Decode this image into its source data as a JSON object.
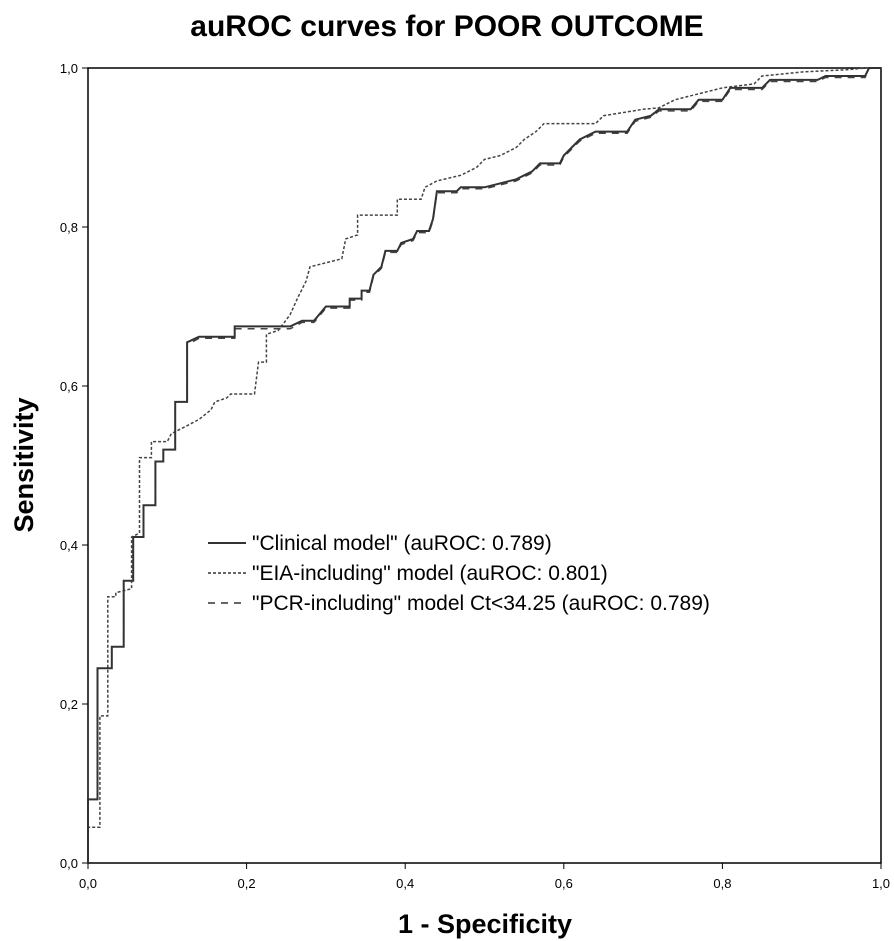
{
  "chart_data": {
    "type": "line",
    "title": "auROC curves for POOR OUTCOME",
    "xlabel": "1 - Specificity",
    "ylabel": "Sensitivity",
    "xlim": [
      0,
      1
    ],
    "ylim": [
      0,
      1
    ],
    "xticks": [
      "0,0",
      "0,2",
      "0,4",
      "0,6",
      "0,8",
      "1,0"
    ],
    "yticks": [
      "0,0",
      "0,2",
      "0,4",
      "0,6",
      "0,8",
      "1,0"
    ],
    "legend_position": "center",
    "grid": false,
    "series": [
      {
        "name": "\"Clinical model\" (auROC: 0.789)",
        "style": "solid",
        "points": [
          [
            0.0,
            0.0
          ],
          [
            0.0,
            0.08
          ],
          [
            0.012,
            0.08
          ],
          [
            0.012,
            0.245
          ],
          [
            0.03,
            0.245
          ],
          [
            0.03,
            0.272
          ],
          [
            0.045,
            0.272
          ],
          [
            0.045,
            0.355
          ],
          [
            0.057,
            0.355
          ],
          [
            0.057,
            0.41
          ],
          [
            0.07,
            0.41
          ],
          [
            0.07,
            0.45
          ],
          [
            0.085,
            0.45
          ],
          [
            0.085,
            0.505
          ],
          [
            0.095,
            0.505
          ],
          [
            0.095,
            0.52
          ],
          [
            0.11,
            0.52
          ],
          [
            0.11,
            0.58
          ],
          [
            0.125,
            0.58
          ],
          [
            0.125,
            0.655
          ],
          [
            0.14,
            0.662
          ],
          [
            0.185,
            0.662
          ],
          [
            0.185,
            0.675
          ],
          [
            0.255,
            0.675
          ],
          [
            0.27,
            0.682
          ],
          [
            0.285,
            0.682
          ],
          [
            0.3,
            0.7
          ],
          [
            0.33,
            0.7
          ],
          [
            0.33,
            0.71
          ],
          [
            0.345,
            0.71
          ],
          [
            0.345,
            0.72
          ],
          [
            0.355,
            0.72
          ],
          [
            0.36,
            0.74
          ],
          [
            0.37,
            0.75
          ],
          [
            0.375,
            0.77
          ],
          [
            0.39,
            0.77
          ],
          [
            0.395,
            0.78
          ],
          [
            0.41,
            0.785
          ],
          [
            0.415,
            0.795
          ],
          [
            0.43,
            0.795
          ],
          [
            0.435,
            0.81
          ],
          [
            0.44,
            0.845
          ],
          [
            0.465,
            0.845
          ],
          [
            0.47,
            0.85
          ],
          [
            0.5,
            0.85
          ],
          [
            0.52,
            0.855
          ],
          [
            0.54,
            0.86
          ],
          [
            0.55,
            0.865
          ],
          [
            0.56,
            0.87
          ],
          [
            0.57,
            0.88
          ],
          [
            0.595,
            0.88
          ],
          [
            0.6,
            0.89
          ],
          [
            0.61,
            0.9
          ],
          [
            0.62,
            0.91
          ],
          [
            0.64,
            0.92
          ],
          [
            0.68,
            0.92
          ],
          [
            0.69,
            0.935
          ],
          [
            0.71,
            0.94
          ],
          [
            0.72,
            0.948
          ],
          [
            0.76,
            0.948
          ],
          [
            0.77,
            0.96
          ],
          [
            0.8,
            0.96
          ],
          [
            0.81,
            0.975
          ],
          [
            0.85,
            0.975
          ],
          [
            0.86,
            0.985
          ],
          [
            0.92,
            0.985
          ],
          [
            0.93,
            0.99
          ],
          [
            0.98,
            0.99
          ],
          [
            0.985,
            1.0
          ],
          [
            1.0,
            1.0
          ]
        ]
      },
      {
        "name": "\"EIA-including\" model (auROC: 0.801)",
        "style": "dotted",
        "points": [
          [
            0.0,
            0.0
          ],
          [
            0.0,
            0.045
          ],
          [
            0.015,
            0.045
          ],
          [
            0.015,
            0.185
          ],
          [
            0.025,
            0.185
          ],
          [
            0.025,
            0.335
          ],
          [
            0.035,
            0.335
          ],
          [
            0.035,
            0.34
          ],
          [
            0.055,
            0.345
          ],
          [
            0.055,
            0.41
          ],
          [
            0.065,
            0.415
          ],
          [
            0.065,
            0.51
          ],
          [
            0.08,
            0.51
          ],
          [
            0.08,
            0.53
          ],
          [
            0.1,
            0.53
          ],
          [
            0.105,
            0.54
          ],
          [
            0.115,
            0.545
          ],
          [
            0.125,
            0.55
          ],
          [
            0.14,
            0.558
          ],
          [
            0.155,
            0.57
          ],
          [
            0.16,
            0.58
          ],
          [
            0.175,
            0.585
          ],
          [
            0.18,
            0.59
          ],
          [
            0.21,
            0.59
          ],
          [
            0.215,
            0.63
          ],
          [
            0.225,
            0.63
          ],
          [
            0.225,
            0.665
          ],
          [
            0.24,
            0.67
          ],
          [
            0.255,
            0.69
          ],
          [
            0.265,
            0.712
          ],
          [
            0.275,
            0.732
          ],
          [
            0.28,
            0.75
          ],
          [
            0.3,
            0.755
          ],
          [
            0.32,
            0.76
          ],
          [
            0.325,
            0.785
          ],
          [
            0.34,
            0.79
          ],
          [
            0.34,
            0.815
          ],
          [
            0.39,
            0.815
          ],
          [
            0.39,
            0.835
          ],
          [
            0.42,
            0.835
          ],
          [
            0.425,
            0.85
          ],
          [
            0.44,
            0.858
          ],
          [
            0.47,
            0.865
          ],
          [
            0.49,
            0.875
          ],
          [
            0.5,
            0.885
          ],
          [
            0.52,
            0.89
          ],
          [
            0.54,
            0.9
          ],
          [
            0.55,
            0.91
          ],
          [
            0.565,
            0.92
          ],
          [
            0.575,
            0.93
          ],
          [
            0.64,
            0.93
          ],
          [
            0.65,
            0.94
          ],
          [
            0.7,
            0.948
          ],
          [
            0.72,
            0.95
          ],
          [
            0.74,
            0.96
          ],
          [
            0.76,
            0.965
          ],
          [
            0.8,
            0.975
          ],
          [
            0.84,
            0.98
          ],
          [
            0.85,
            0.99
          ],
          [
            0.9,
            0.995
          ],
          [
            0.96,
            0.998
          ],
          [
            0.98,
            1.0
          ],
          [
            1.0,
            1.0
          ]
        ]
      },
      {
        "name": "\"PCR-including\" model Ct<34.25 (auROC: 0.789)",
        "style": "dashed",
        "points": [
          [
            0.0,
            0.0
          ],
          [
            0.0,
            0.08
          ],
          [
            0.012,
            0.08
          ],
          [
            0.012,
            0.245
          ],
          [
            0.03,
            0.245
          ],
          [
            0.03,
            0.272
          ],
          [
            0.045,
            0.272
          ],
          [
            0.045,
            0.355
          ],
          [
            0.057,
            0.355
          ],
          [
            0.057,
            0.41
          ],
          [
            0.07,
            0.41
          ],
          [
            0.07,
            0.45
          ],
          [
            0.085,
            0.45
          ],
          [
            0.085,
            0.505
          ],
          [
            0.095,
            0.505
          ],
          [
            0.095,
            0.52
          ],
          [
            0.11,
            0.52
          ],
          [
            0.11,
            0.58
          ],
          [
            0.125,
            0.58
          ],
          [
            0.125,
            0.652
          ],
          [
            0.14,
            0.66
          ],
          [
            0.185,
            0.66
          ],
          [
            0.185,
            0.672
          ],
          [
            0.255,
            0.672
          ],
          [
            0.27,
            0.68
          ],
          [
            0.285,
            0.68
          ],
          [
            0.3,
            0.698
          ],
          [
            0.33,
            0.698
          ],
          [
            0.33,
            0.708
          ],
          [
            0.345,
            0.708
          ],
          [
            0.345,
            0.718
          ],
          [
            0.355,
            0.718
          ],
          [
            0.36,
            0.738
          ],
          [
            0.37,
            0.748
          ],
          [
            0.375,
            0.768
          ],
          [
            0.39,
            0.768
          ],
          [
            0.395,
            0.778
          ],
          [
            0.41,
            0.783
          ],
          [
            0.415,
            0.793
          ],
          [
            0.43,
            0.793
          ],
          [
            0.435,
            0.808
          ],
          [
            0.44,
            0.843
          ],
          [
            0.465,
            0.843
          ],
          [
            0.47,
            0.848
          ],
          [
            0.5,
            0.848
          ],
          [
            0.52,
            0.853
          ],
          [
            0.54,
            0.858
          ],
          [
            0.55,
            0.863
          ],
          [
            0.56,
            0.868
          ],
          [
            0.57,
            0.878
          ],
          [
            0.595,
            0.878
          ],
          [
            0.6,
            0.888
          ],
          [
            0.61,
            0.898
          ],
          [
            0.62,
            0.908
          ],
          [
            0.64,
            0.918
          ],
          [
            0.68,
            0.918
          ],
          [
            0.69,
            0.933
          ],
          [
            0.71,
            0.938
          ],
          [
            0.72,
            0.946
          ],
          [
            0.76,
            0.946
          ],
          [
            0.77,
            0.958
          ],
          [
            0.8,
            0.958
          ],
          [
            0.81,
            0.973
          ],
          [
            0.85,
            0.973
          ],
          [
            0.86,
            0.983
          ],
          [
            0.92,
            0.983
          ],
          [
            0.93,
            0.988
          ],
          [
            0.98,
            0.988
          ],
          [
            0.985,
            1.0
          ],
          [
            1.0,
            1.0
          ]
        ]
      }
    ]
  }
}
